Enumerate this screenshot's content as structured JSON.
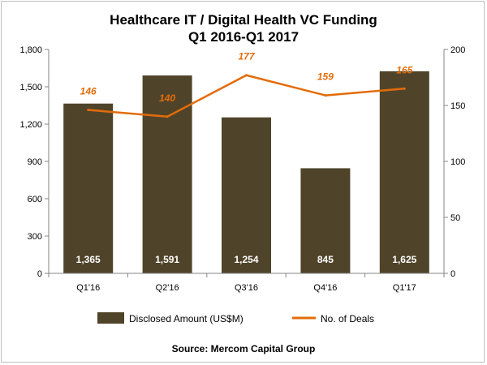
{
  "chart_data": {
    "type": "bar",
    "title": "Healthcare IT / Digital Health VC Funding",
    "subtitle": "Q1 2016-Q1 2017",
    "categories": [
      "Q1'16",
      "Q2'16",
      "Q3'16",
      "Q4'16",
      "Q1'17"
    ],
    "series": [
      {
        "name": "Disclosed Amount (US$M)",
        "type": "bar",
        "axis": "left",
        "values": [
          1365,
          1591,
          1254,
          845,
          1625
        ],
        "labels": [
          "1,365",
          "1,591",
          "1,254",
          "845",
          "1,625"
        ],
        "color": "#4f4429"
      },
      {
        "name": "No. of Deals",
        "type": "line",
        "axis": "right",
        "values": [
          146,
          140,
          177,
          159,
          165
        ],
        "labels": [
          "146",
          "140",
          "177",
          "159",
          "165"
        ],
        "color": "#e36c0a"
      }
    ],
    "y_left": {
      "min": 0,
      "max": 1800,
      "ticks": [
        0,
        300,
        600,
        900,
        1200,
        1500,
        1800
      ],
      "tick_labels": [
        "0",
        "300",
        "600",
        "900",
        "1,200",
        "1,500",
        "1,800"
      ]
    },
    "y_right": {
      "min": 0,
      "max": 200,
      "ticks": [
        0,
        50,
        100,
        150,
        200
      ],
      "tick_labels": [
        "0",
        "50",
        "100",
        "150",
        "200"
      ]
    },
    "grid": false,
    "legend": "bottom",
    "source": "Source: Mercom Capital Group"
  }
}
